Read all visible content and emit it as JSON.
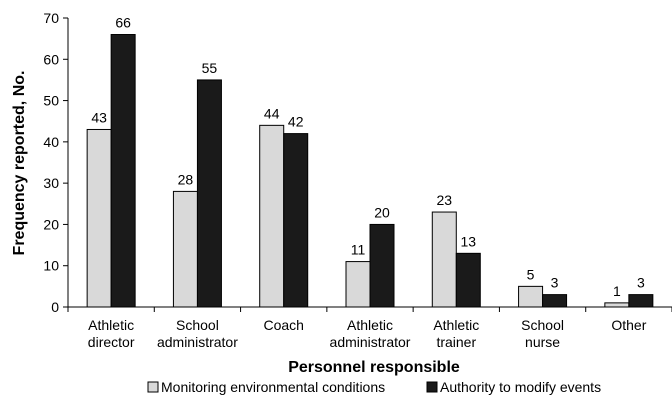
{
  "chart_data": {
    "type": "bar",
    "title": "",
    "xlabel": "Personnel responsible",
    "ylabel": "Frequency reported, No.",
    "ylim": [
      0,
      70
    ],
    "yticks": [
      0,
      10,
      20,
      30,
      40,
      50,
      60,
      70
    ],
    "grid": false,
    "legend_position": "bottom",
    "categories": [
      [
        "Athletic",
        "director"
      ],
      [
        "School",
        "administrator"
      ],
      [
        "Coach"
      ],
      [
        "Athletic",
        "administrator"
      ],
      [
        "Athletic",
        "trainer"
      ],
      [
        "School",
        "nurse"
      ],
      [
        "Other"
      ]
    ],
    "series": [
      {
        "name": "Monitoring environmental conditions",
        "color": "#d9d9d9",
        "values": [
          43,
          28,
          44,
          11,
          23,
          5,
          1
        ]
      },
      {
        "name": "Authority to modify events",
        "color": "#1a1a1a",
        "values": [
          66,
          55,
          42,
          20,
          13,
          3,
          3
        ]
      }
    ]
  }
}
